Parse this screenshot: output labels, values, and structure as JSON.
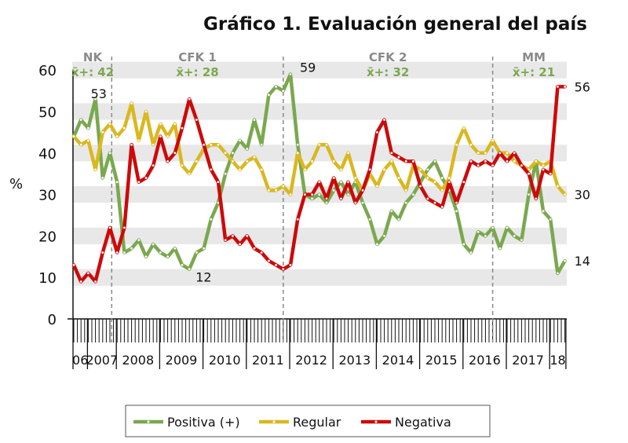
{
  "chart_data": {
    "type": "line",
    "title": "Gráfico 1. Evaluación general del país",
    "ylabel": "%",
    "xlabel": "",
    "ylim": [
      0,
      60
    ],
    "yticks": [
      0,
      10,
      20,
      30,
      40,
      50,
      60
    ],
    "grid": "alternating horizontal bands",
    "x_step_months": 2,
    "x": [
      0,
      2,
      4,
      6,
      8,
      10,
      12,
      14,
      16,
      18,
      20,
      22,
      24,
      26,
      28,
      30,
      32,
      34,
      36,
      38,
      40,
      42,
      44,
      46,
      48,
      50,
      52,
      54,
      56,
      58,
      60,
      62,
      64,
      66,
      68,
      70,
      72,
      74,
      76,
      78,
      80,
      82,
      84,
      86,
      88,
      90,
      92,
      94,
      96,
      98,
      100,
      102,
      104,
      106,
      108,
      110,
      112,
      114,
      116,
      118,
      120,
      122,
      124,
      126,
      128,
      130,
      132,
      134,
      136
    ],
    "year_labels": [
      "06",
      "2007",
      "2008",
      "2009",
      "2010",
      "2011",
      "2012",
      "2013",
      "2014",
      "2015",
      "2016",
      "2017",
      "18"
    ],
    "year_boundaries": [
      0,
      4,
      12,
      24,
      36,
      48,
      60,
      72,
      84,
      96,
      108,
      120,
      132,
      136.5
    ],
    "series": [
      {
        "name": "Positiva (+)",
        "color": "#7aa84f",
        "values": [
          44,
          48,
          46,
          53,
          34,
          40,
          33,
          16,
          17,
          19,
          15,
          18,
          16,
          15,
          17,
          13,
          12,
          16,
          17,
          24,
          28,
          35,
          40,
          43,
          41,
          48,
          42,
          54,
          56,
          55,
          59,
          42,
          30,
          29,
          30,
          28,
          31,
          33,
          30,
          33,
          28,
          24,
          18,
          20,
          26,
          24,
          28,
          30,
          33,
          36,
          38,
          34,
          31,
          26,
          18,
          16,
          21,
          20,
          22,
          17,
          22,
          20,
          19,
          30,
          38,
          26,
          24,
          11,
          14
        ]
      },
      {
        "name": "Regular",
        "color": "#d9b820",
        "values": [
          44,
          42,
          43,
          36,
          45,
          47,
          44,
          46,
          52,
          43,
          50,
          42,
          47,
          44,
          47,
          37,
          35,
          38,
          41,
          42,
          42,
          40,
          38,
          36,
          38,
          39,
          36,
          31,
          31,
          32,
          30,
          40,
          36,
          38,
          42,
          42,
          38,
          36,
          40,
          34,
          31,
          35,
          32,
          36,
          38,
          34,
          31,
          37,
          36,
          34,
          33,
          31,
          34,
          42,
          46,
          42,
          40,
          40,
          43,
          40,
          40,
          38,
          37,
          36,
          38,
          37,
          38,
          32,
          30
        ]
      },
      {
        "name": "Negativa",
        "color": "#cc0a0a",
        "values": [
          13,
          9,
          11,
          9,
          16,
          22,
          16,
          22,
          42,
          33,
          34,
          37,
          44,
          38,
          40,
          46,
          53,
          48,
          42,
          36,
          33,
          19,
          20,
          18,
          20,
          17,
          16,
          14,
          13,
          12,
          13,
          24,
          30,
          30,
          33,
          29,
          34,
          29,
          33,
          28,
          31,
          36,
          45,
          48,
          40,
          39,
          38,
          38,
          32,
          29,
          28,
          27,
          33,
          28,
          33,
          38,
          37,
          38,
          37,
          40,
          38,
          40,
          37,
          35,
          29,
          36,
          35,
          56,
          56
        ]
      }
    ],
    "periods": [
      {
        "name": "NK",
        "mean_label": "x̄+: 42",
        "end_x": 10.5
      },
      {
        "name": "CFK 1",
        "mean_label": "x̄+: 28",
        "end_x": 58
      },
      {
        "name": "CFK 2",
        "mean_label": "x̄+: 32",
        "end_x": 116
      },
      {
        "name": "MM",
        "mean_label": "x̄+: 21"
      }
    ],
    "annotations": [
      {
        "text": "53",
        "x": 6,
        "y": 53
      },
      {
        "text": "59",
        "x": 60,
        "y": 59
      },
      {
        "text": "12",
        "x": 32,
        "y": 12
      },
      {
        "text": "56",
        "x": 136,
        "y": 56
      },
      {
        "text": "30",
        "x": 136,
        "y": 30
      },
      {
        "text": "14",
        "x": 136,
        "y": 14
      }
    ],
    "legend": {
      "placement": "bottom",
      "entries": [
        "Positiva (+)",
        "Regular",
        "Negativa"
      ]
    }
  }
}
